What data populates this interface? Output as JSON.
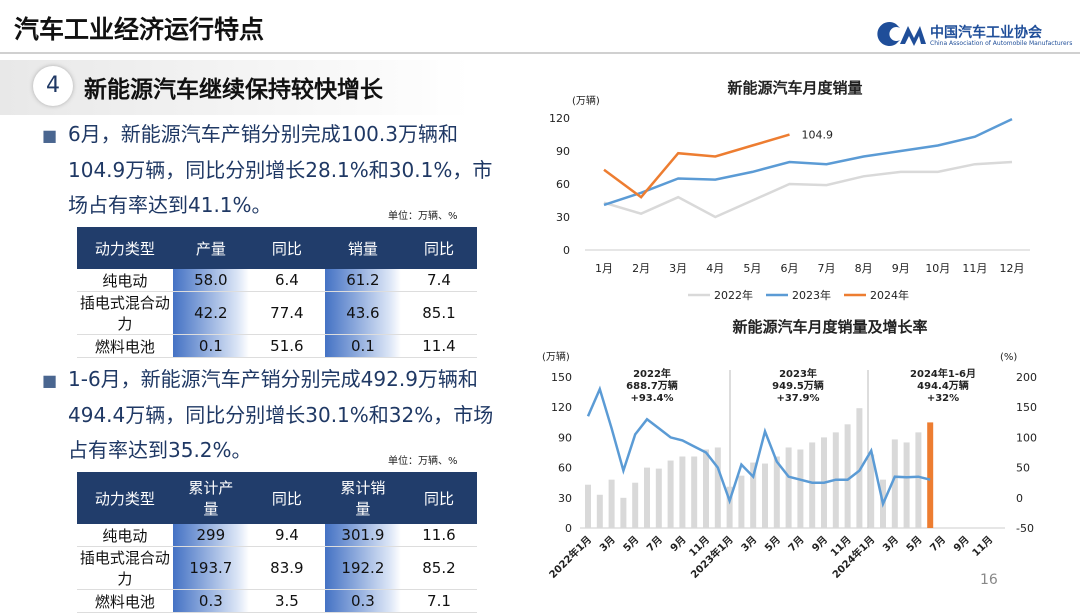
{
  "header": {
    "title": "汽车工业经济运行特点",
    "logo_cn": "中国汽车工业协会",
    "logo_en": "China Association of Automobile Manufacturers"
  },
  "section": {
    "number": "4",
    "title": "新能源汽车继续保持较快增长"
  },
  "blocks": [
    {
      "text": "6月，新能源汽车产销分别完成100.3万辆和104.9万辆，同比分别增长28.1%和30.1%，市场占有率达到41.1%。",
      "unit": "单位：万辆、%",
      "table": {
        "header": [
          "动力类型",
          "产量",
          "同比",
          "销量",
          "同比"
        ],
        "rows": [
          [
            "纯电动",
            "58.0",
            "6.4",
            "61.2",
            "7.4"
          ],
          [
            "插电式混合动力",
            "42.2",
            "77.4",
            "43.6",
            "85.1"
          ],
          [
            "燃料电池",
            "0.1",
            "51.6",
            "0.1",
            "11.4"
          ]
        ]
      }
    },
    {
      "text": "1-6月，新能源汽车产销分别完成492.9万辆和494.4万辆，同比分别增长30.1%和32%，市场占有率达到35.2%。",
      "unit": "单位：万辆、%",
      "table": {
        "header": [
          "动力类型",
          "累计产量",
          "同比",
          "累计销量",
          "同比"
        ],
        "rows": [
          [
            "纯电动",
            "299",
            "9.4",
            "301.9",
            "11.6"
          ],
          [
            "插电式混合动力",
            "193.7",
            "83.9",
            "192.2",
            "85.2"
          ],
          [
            "燃料电池",
            "0.3",
            "3.5",
            "0.3",
            "7.1"
          ]
        ]
      }
    }
  ],
  "page_number": "16",
  "chart_data": [
    {
      "type": "line",
      "title": "新能源汽车月度销量",
      "y_unit": "(万辆)",
      "categories": [
        "1月",
        "2月",
        "3月",
        "4月",
        "5月",
        "6月",
        "7月",
        "8月",
        "9月",
        "10月",
        "11月",
        "12月"
      ],
      "ylim": [
        0,
        120
      ],
      "yticks": [
        0,
        30,
        60,
        90,
        120
      ],
      "legend": "bottom",
      "series": [
        {
          "name": "2022年",
          "color": "#d9d9d9",
          "values": [
            43,
            33,
            48,
            30,
            45,
            60,
            59,
            67,
            71,
            71,
            78,
            80
          ]
        },
        {
          "name": "2023年",
          "color": "#5b9bd5",
          "values": [
            41,
            52,
            65,
            64,
            71,
            80,
            78,
            85,
            90,
            95,
            103,
            119
          ]
        },
        {
          "name": "2024年",
          "color": "#ed7d31",
          "label_last": true,
          "values": [
            73,
            48,
            88,
            85,
            95,
            104.9,
            null,
            null,
            null,
            null,
            null,
            null
          ]
        }
      ]
    },
    {
      "type": "combo",
      "title": "新能源汽车月度销量及增长率",
      "y_unit": "(万辆)",
      "y2_unit": "(%)",
      "categories": [
        "2022年1月",
        null,
        "3月",
        null,
        "5月",
        null,
        "7月",
        null,
        "9月",
        null,
        "11月",
        null,
        "2023年1月",
        null,
        "3月",
        null,
        "5月",
        null,
        "7月",
        null,
        "9月",
        null,
        "11月",
        null,
        "2024年1月",
        null,
        "3月",
        null,
        "5月",
        null,
        "7月",
        null,
        "9月",
        null,
        "11月",
        null
      ],
      "ylim": [
        0,
        150
      ],
      "yticks": [
        0,
        30,
        60,
        90,
        120,
        150
      ],
      "y2lim": [
        -50,
        200
      ],
      "y2ticks": [
        -50,
        0,
        50,
        100,
        150,
        200
      ],
      "series": [
        {
          "type": "bar",
          "color": "#d9d9d9",
          "values": [
            43,
            33,
            48,
            30,
            45,
            60,
            59,
            67,
            71,
            71,
            78,
            80,
            41,
            52,
            65,
            64,
            71,
            80,
            78,
            85,
            90,
            95,
            103,
            119,
            73,
            48,
            88,
            85,
            95,
            null,
            null,
            null,
            null,
            null,
            null,
            null
          ]
        },
        {
          "type": "bar",
          "color": "#ed7d31",
          "values": [
            null,
            null,
            null,
            null,
            null,
            null,
            null,
            null,
            null,
            null,
            null,
            null,
            null,
            null,
            null,
            null,
            null,
            null,
            null,
            null,
            null,
            null,
            null,
            null,
            null,
            null,
            null,
            null,
            null,
            104.9,
            null,
            null,
            null,
            null,
            null,
            null
          ]
        },
        {
          "type": "line",
          "axis": "y2",
          "color": "#5b9bd5",
          "values": [
            135,
            180,
            115,
            45,
            105,
            130,
            115,
            100,
            95,
            85,
            75,
            50,
            -5,
            55,
            35,
            110,
            60,
            35,
            30,
            25,
            25,
            30,
            30,
            45,
            78,
            -10,
            35,
            34,
            35,
            30,
            null,
            null,
            null,
            null,
            null,
            null
          ]
        }
      ],
      "annotations": [
        {
          "lines": [
            "2022年",
            "688.7万辆",
            "+93.4%"
          ]
        },
        {
          "lines": [
            "2023年",
            "949.5万辆",
            "+37.9%"
          ]
        },
        {
          "lines": [
            "2024年1-6月",
            "494.4万辆",
            "+32%"
          ]
        }
      ]
    }
  ]
}
